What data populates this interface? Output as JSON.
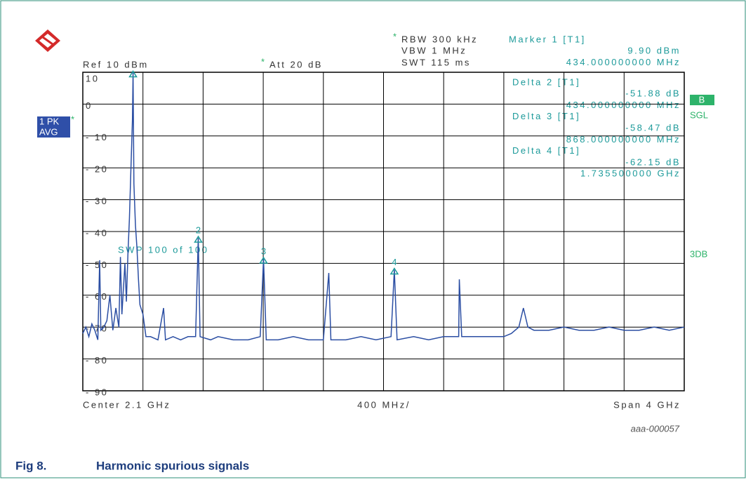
{
  "chart_data": {
    "type": "line",
    "header": {
      "ref": "Ref 10 dBm",
      "att_flag": "*",
      "att": "Att 20 dB",
      "rbw_flag": "*",
      "rbw": "RBW 300 kHz",
      "vbw": "VBW 1 MHz",
      "swt": "SWT 115 ms"
    },
    "marker_info": [
      "Marker 1 [T1]",
      "9.90 dBm",
      "434.000000000 MHz",
      "Delta 2 [T1]",
      "-51.88 dB",
      "434.000000000 MHz",
      "Delta 3 [T1]",
      "-58.47 dB",
      "868.000000000 MHz",
      "Delta 4 [T1]",
      "-62.15 dB",
      "1.735500000 GHz"
    ],
    "left_labels": {
      "trace": "1 PK",
      "flag": "*",
      "mode": "AVG"
    },
    "right_labels": {
      "box": "B",
      "sgl": "SGL",
      "db": "3DB"
    },
    "sweep": "SWP 100 of 100",
    "footer": {
      "center": "Center 2.1 GHz",
      "div": "400 MHz/",
      "span": "Span 4 GHz"
    },
    "xlim": [
      0.1,
      4.1
    ],
    "xticks": [
      0.1,
      0.5,
      0.9,
      1.3,
      1.7,
      2.1,
      2.5,
      2.9,
      3.3,
      3.7,
      4.1
    ],
    "ylim": [
      -90,
      10
    ],
    "yticks": [
      10,
      0,
      {
        "value": -10,
        "label": "- 10"
      },
      {
        "value": -20,
        "label": "- 20"
      },
      {
        "value": -30,
        "label": "- 30"
      },
      {
        "value": -40,
        "label": "- 40"
      },
      {
        "value": -50,
        "label": "- 50"
      },
      {
        "value": -60,
        "label": "- 60"
      },
      {
        "value": -70,
        "label": "- 70"
      },
      {
        "value": -80,
        "label": "- 80"
      },
      {
        "value": -90,
        "label": "- 90"
      }
    ],
    "grid": true,
    "series": [
      {
        "color": "#2b4ea3",
        "x": [
          0.1,
          0.12,
          0.14,
          0.16,
          0.18,
          0.2,
          0.212,
          0.22,
          0.24,
          0.26,
          0.28,
          0.3,
          0.32,
          0.34,
          0.35,
          0.36,
          0.38,
          0.39,
          0.4,
          0.41,
          0.42,
          0.43,
          0.434,
          0.44,
          0.45,
          0.46,
          0.47,
          0.48,
          0.5,
          0.52,
          0.55,
          0.6,
          0.637,
          0.65,
          0.7,
          0.75,
          0.8,
          0.85,
          0.868,
          0.88,
          0.95,
          1.0,
          1.1,
          1.2,
          1.28,
          1.302,
          1.32,
          1.4,
          1.5,
          1.6,
          1.7,
          1.736,
          1.75,
          1.85,
          1.95,
          2.05,
          2.15,
          2.172,
          2.19,
          2.3,
          2.4,
          2.5,
          2.6,
          2.604,
          2.62,
          2.7,
          2.8,
          2.9,
          2.95,
          3.0,
          3.03,
          3.06,
          3.1,
          3.2,
          3.3,
          3.4,
          3.5,
          3.6,
          3.7,
          3.8,
          3.9,
          4.0,
          4.1
        ],
        "values": [
          -72,
          -70,
          -73,
          -69,
          -71,
          -74,
          -49,
          -71,
          -70,
          -68,
          -60,
          -71,
          -64,
          -70,
          -48,
          -66,
          -50,
          -62,
          -47,
          -36,
          -20,
          -5,
          9.9,
          -25,
          -38,
          -45,
          -55,
          -63,
          -66,
          -73,
          -73,
          -74,
          -64,
          -74,
          -73,
          -74,
          -73,
          -73,
          -42,
          -73,
          -74,
          -73,
          -74,
          -74,
          -73,
          -48.6,
          -74,
          -74,
          -73,
          -74,
          -74,
          -53,
          -74,
          -74,
          -73,
          -74,
          -73,
          -52,
          -74,
          -73,
          -74,
          -73,
          -73,
          -55,
          -73,
          -73,
          -73,
          -73,
          -72,
          -70,
          -64,
          -70,
          -71,
          -71,
          -70,
          -71,
          -71,
          -70,
          -71,
          -71,
          -70,
          -71,
          -70
        ]
      }
    ],
    "markers": [
      {
        "x": 0.434,
        "y": 9.9
      },
      {
        "label": "2",
        "x": 0.868,
        "y": -42
      },
      {
        "label": "3",
        "x": 1.302,
        "y": -48.6
      },
      {
        "label": "4",
        "x": 2.172,
        "y": -52
      }
    ],
    "marker_color": "#1c9a9a"
  },
  "figure_id": "aaa-000057",
  "caption": {
    "number": "Fig 8.",
    "title": "Harmonic spurious signals"
  }
}
